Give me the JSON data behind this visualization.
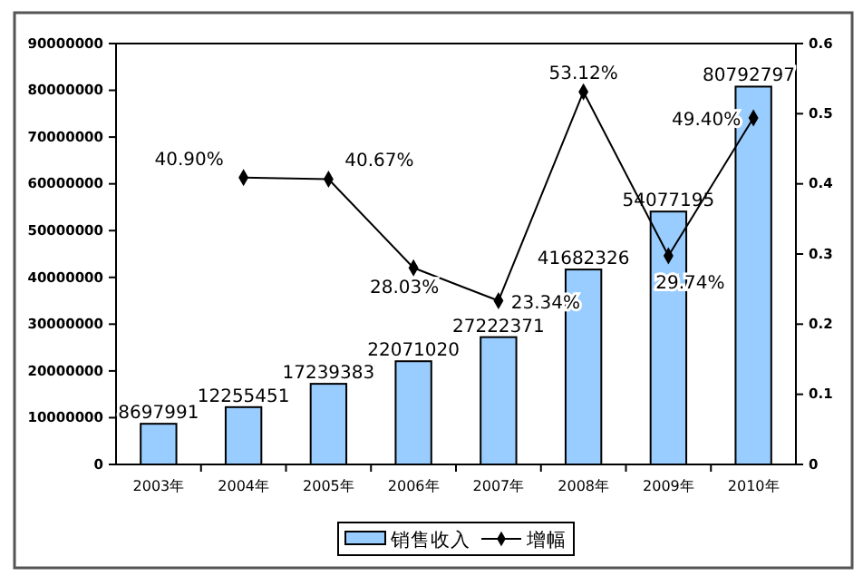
{
  "chart_data": {
    "type": "bar",
    "categories": [
      "2003年",
      "2004年",
      "2005年",
      "2006年",
      "2007年",
      "2008年",
      "2009年",
      "2010年"
    ],
    "series": [
      {
        "name": "销售收入",
        "color": "#99ccff",
        "values": [
          8697991,
          12255451,
          17239383,
          22071020,
          27222371,
          41682326,
          54077195,
          80792797
        ],
        "value_labels": [
          "8697991",
          "12255451",
          "17239383",
          "22071020",
          "27222371",
          "41682326",
          "54077195",
          "80792797"
        ]
      },
      {
        "name": "增幅",
        "type": "line",
        "axis": "y2",
        "color": "#000000",
        "values": [
          null,
          0.409,
          0.4067,
          0.2803,
          0.2334,
          0.5312,
          0.2974,
          0.494
        ],
        "value_labels": [
          null,
          "40.90%",
          "40.67%",
          "28.03%",
          "23.34%",
          "53.12%",
          "29.74%",
          "49.40%"
        ]
      }
    ],
    "ylim": [
      0,
      90000000
    ],
    "yticks": [
      0,
      10000000,
      20000000,
      30000000,
      40000000,
      50000000,
      60000000,
      70000000,
      80000000,
      90000000
    ],
    "y2lim": [
      0,
      0.6
    ],
    "y2ticks": [
      0,
      0.1,
      0.2,
      0.3,
      0.4,
      0.5,
      0.6
    ],
    "legend": "bottom",
    "marker": "diamond",
    "line_style": "solid",
    "grid": false
  }
}
